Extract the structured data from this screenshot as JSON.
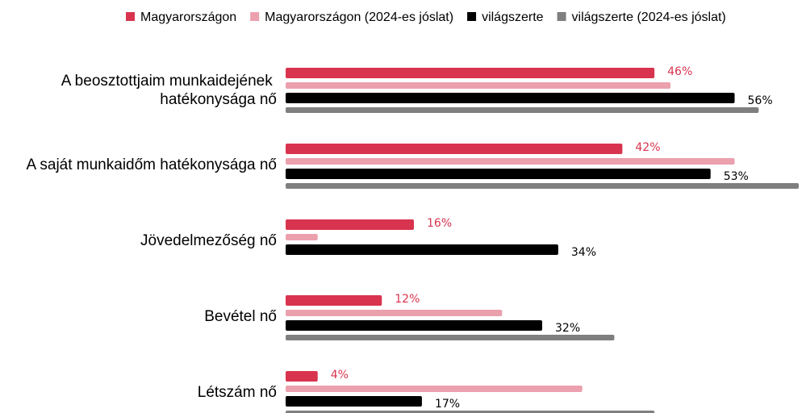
{
  "chart_data": {
    "type": "bar",
    "orientation": "horizontal",
    "categories": [
      "A beosztottjaim munkaidejének hatékonysága nő",
      "A saját munkaidőm hatékonysága nő",
      "Jövedelmezőség nő",
      "Bevétel nő",
      "Létszám nő"
    ],
    "series": [
      {
        "name": "Magyarországon",
        "color": "#d9344f",
        "values": [
          46,
          42,
          16,
          12,
          4
        ],
        "value_labels": [
          "46%",
          "42%",
          "16%",
          "12%",
          "4%"
        ]
      },
      {
        "name": "Magyarországon (2024-es jóslat)",
        "color": "#eba0ae",
        "values": [
          48,
          56,
          4,
          27,
          37
        ]
      },
      {
        "name": "világszerte",
        "color": "#000000",
        "values": [
          56,
          53,
          34,
          32,
          17
        ],
        "value_labels": [
          "56%",
          "53%",
          "34%",
          "32%",
          "17%"
        ]
      },
      {
        "name": "világszerte (2024-es jóslat)",
        "color": "#7f7f7f",
        "values": [
          59,
          64,
          null,
          41,
          46
        ]
      }
    ],
    "xlim": [
      0,
      64
    ],
    "legend": "top"
  }
}
